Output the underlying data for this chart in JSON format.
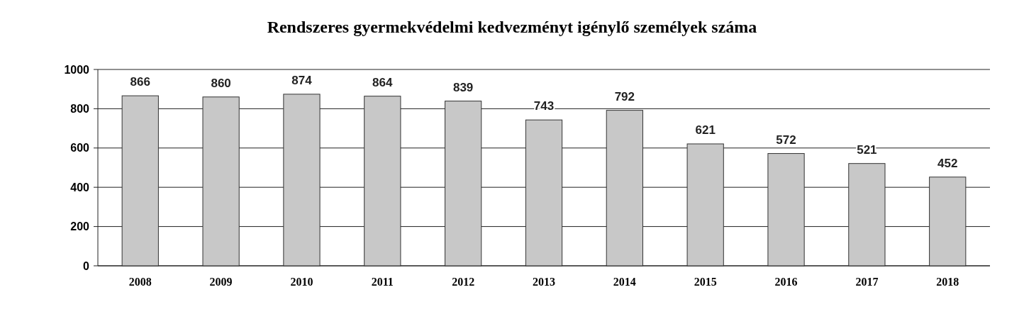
{
  "chart_data": {
    "type": "bar",
    "title": "Rendszeres gyermekvédelmi kedvezményt igénylő személyek száma",
    "categories": [
      "2008",
      "2009",
      "2010",
      "2011",
      "2012",
      "2013",
      "2014",
      "2015",
      "2016",
      "2017",
      "2018"
    ],
    "values": [
      866,
      860,
      874,
      864,
      839,
      743,
      792,
      621,
      572,
      521,
      452
    ],
    "color": "#c8c8c8",
    "ylim": [
      0,
      1000
    ],
    "yticks": [
      0,
      200,
      400,
      600,
      800,
      1000
    ],
    "grid": "y",
    "data_labels": true
  }
}
